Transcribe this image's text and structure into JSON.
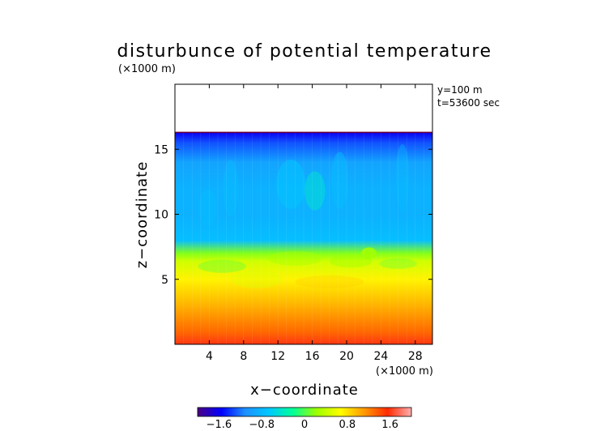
{
  "chart_data": {
    "type": "heatmap",
    "title": "disturbunce of potential temperature",
    "xlabel": "x−coordinate",
    "ylabel": "z−coordinate",
    "x_unit": "(×1000 m)",
    "y_unit": "(×1000 m)",
    "xlim": [
      0,
      30
    ],
    "ylim": [
      0,
      20
    ],
    "x_ticks": [
      4,
      8,
      12,
      16,
      20,
      24,
      28
    ],
    "x_tick_labels": [
      "4",
      "8",
      "12",
      "16",
      "20",
      "24",
      "28"
    ],
    "y_ticks": [
      5,
      10,
      15
    ],
    "y_tick_labels": [
      "5",
      "10",
      "15"
    ],
    "annotations": [
      "y=100 m",
      "t=53600 sec"
    ],
    "top_boundary_z": 16.3,
    "colorbar": {
      "range": [
        -2.0,
        2.0
      ],
      "ticks": [
        -1.6,
        -0.8,
        0,
        0.8,
        1.6
      ],
      "tick_labels": [
        "−1.6",
        "−0.8",
        "0",
        "0.8",
        "1.6"
      ],
      "colors": [
        "#4b0082",
        "#0000ff",
        "#1e90ff",
        "#00c8ff",
        "#00ff9a",
        "#9cff00",
        "#ffff00",
        "#ff9a00",
        "#ff2a00",
        "#ffb0b0"
      ]
    },
    "field_profile": {
      "z": [
        0,
        1,
        3,
        5,
        6.4,
        7.0,
        8,
        10,
        12,
        14,
        15.5,
        16.3
      ],
      "value": [
        1.6,
        1.3,
        1.0,
        0.72,
        0.45,
        0.15,
        -0.75,
        -0.85,
        -0.85,
        -0.95,
        -1.3,
        -1.6
      ]
    }
  }
}
